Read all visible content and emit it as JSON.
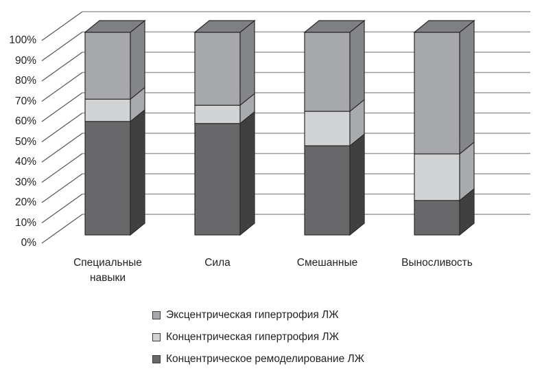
{
  "chart_data": {
    "type": "bar",
    "subtype": "stacked-100-percent-3d",
    "title": "",
    "xlabel": "",
    "ylabel": "",
    "ylim": [
      0,
      100
    ],
    "y_ticks": [
      "0%",
      "10%",
      "20%",
      "30%",
      "40%",
      "50%",
      "60%",
      "70%",
      "80%",
      "90%",
      "100%"
    ],
    "grid": true,
    "legend_position": "bottom",
    "categories": [
      "Специальные навыки",
      "Сила",
      "Смешанные",
      "Выносливость"
    ],
    "category_lines": [
      [
        "Специальные",
        "навыки"
      ],
      [
        "Сила"
      ],
      [
        "Смешанные"
      ],
      [
        "Выносливость"
      ]
    ],
    "series": [
      {
        "name": "Концентрическое ремоделирование ЛЖ",
        "values": [
          56,
          55,
          44,
          17
        ],
        "color": "#68686a",
        "side": "#404041",
        "top": "#58585a"
      },
      {
        "name": "Концентрическая гипертрофия ЛЖ",
        "values": [
          11,
          9,
          17,
          23
        ],
        "color": "#d2d3d5",
        "side": "#a9aaad",
        "top": "#bfc0c2"
      },
      {
        "name": "Эксцентрическая гипертрофия ЛЖ",
        "values": [
          33,
          36,
          39,
          60
        ],
        "color": "#a7a8ab",
        "side": "#85868a",
        "top": "#7f8083"
      }
    ],
    "legend_order": [
      2,
      1,
      0
    ]
  }
}
